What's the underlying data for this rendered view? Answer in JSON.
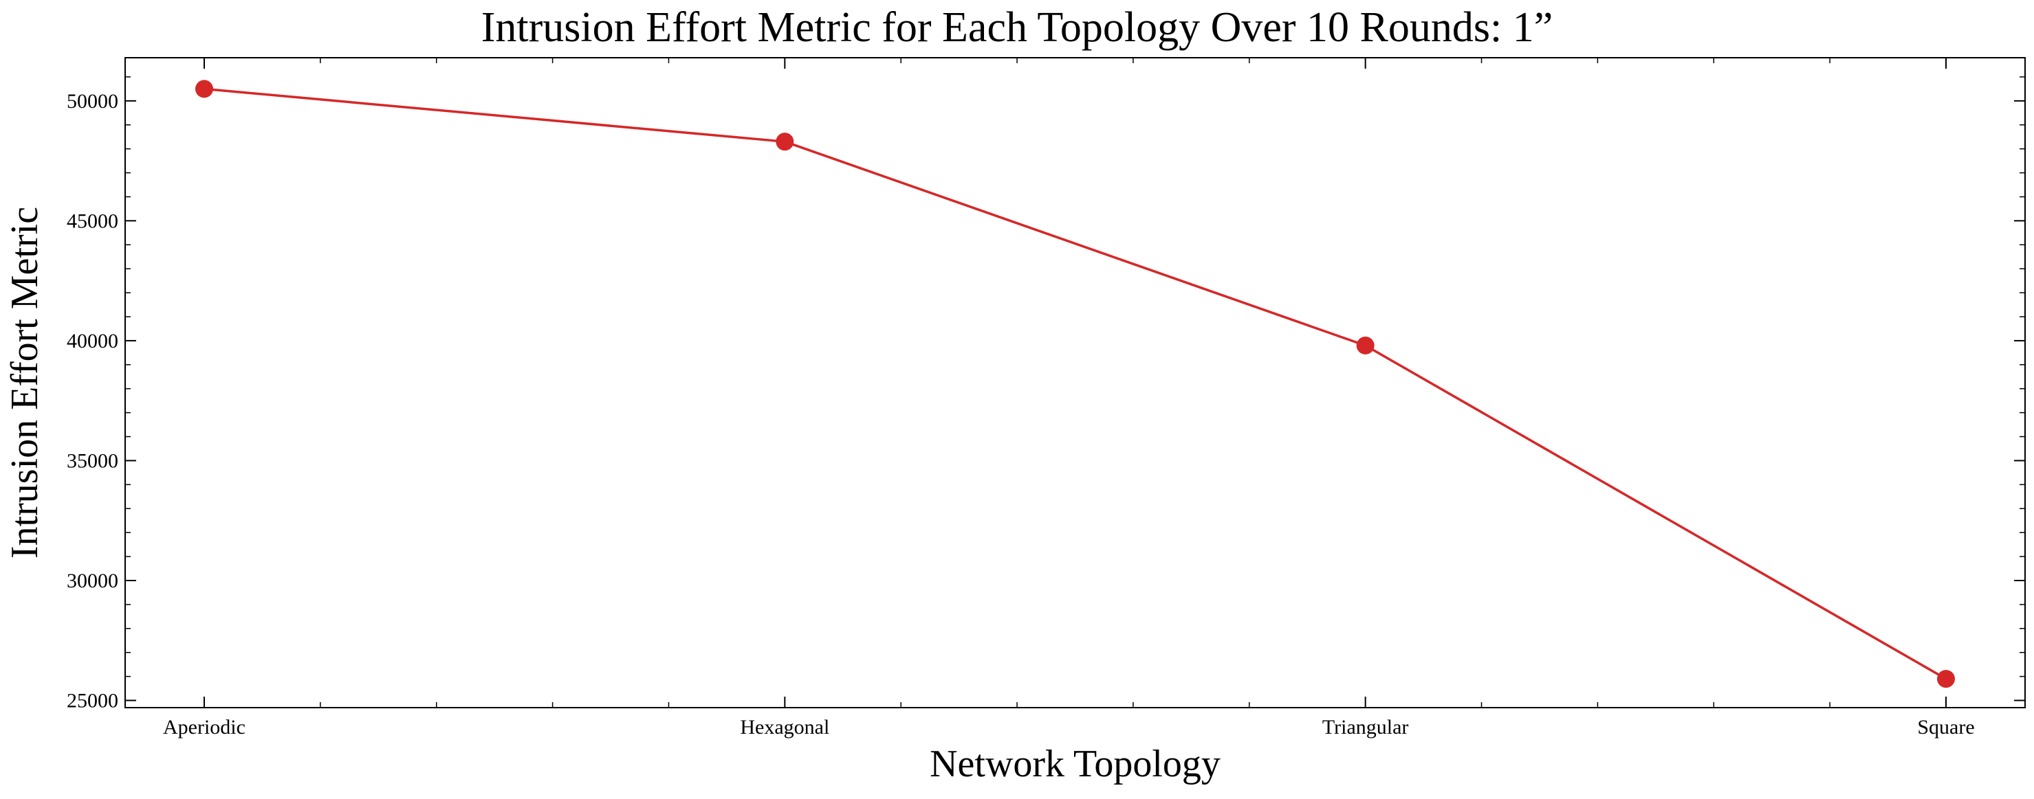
{
  "chart_data": {
    "type": "line",
    "title": "Intrusion Effort Metric for Each Topology Over 10 Rounds: 1”",
    "xlabel": "Network Topology",
    "ylabel": "Intrusion Effort Metric",
    "categories": [
      "Aperiodic",
      "Hexagonal",
      "Triangular",
      "Square"
    ],
    "series": [
      {
        "values": [
          50500,
          48300,
          39800,
          25900
        ],
        "color": "#d62728",
        "marker": "circle"
      }
    ],
    "yticks": [
      25000,
      30000,
      35000,
      40000,
      45000,
      50000
    ],
    "ylim": [
      24700,
      51800
    ],
    "grid": false,
    "legend": "none"
  }
}
